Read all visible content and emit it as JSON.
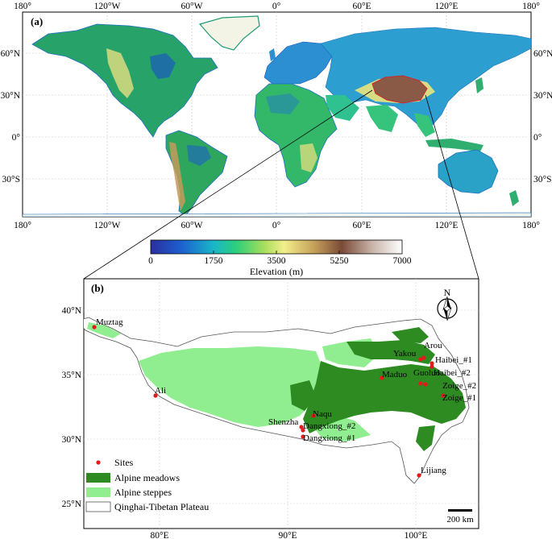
{
  "panel_a": {
    "label": "(a)",
    "lon_ticks": [
      "180°",
      "120°W",
      "60°W",
      "0°",
      "60°E",
      "120°E",
      "180°"
    ],
    "lat_ticks": [
      "60°N",
      "30°N",
      "0°",
      "30°S"
    ]
  },
  "colorbar": {
    "title": "Elevation (m)",
    "ticks": [
      "0",
      "1750",
      "3500",
      "5250",
      "7000"
    ],
    "colors": [
      "#2b2f9e",
      "#1c7ad8",
      "#19c27e",
      "#a6dd5c",
      "#f3ef8a",
      "#b08a4a",
      "#7a4a37",
      "#c8b3a8",
      "#ffffff"
    ]
  },
  "panel_b": {
    "label": "(b)",
    "lat_ticks": [
      "40°N",
      "35°N",
      "30°N",
      "25°N"
    ],
    "lon_ticks": [
      "80°E",
      "90°E",
      "100°E"
    ],
    "north_label": "N",
    "scale_label": "200 km",
    "sites": [
      {
        "name": "Muztag"
      },
      {
        "name": "Ali"
      },
      {
        "name": "Shenzha"
      },
      {
        "name": "Naqu"
      },
      {
        "name": "Dangxiong_#2"
      },
      {
        "name": "Dangxiong_#1"
      },
      {
        "name": "Maduo"
      },
      {
        "name": "Yakou"
      },
      {
        "name": "Arou"
      },
      {
        "name": "Haibei_#1"
      },
      {
        "name": "Haibei_#2"
      },
      {
        "name": "Guoluo"
      },
      {
        "name": "Zoige_#2"
      },
      {
        "name": "Zoige_#1"
      },
      {
        "name": "Lijiang"
      }
    ],
    "legend": [
      {
        "label": "Sites",
        "color": "#e31a1c"
      },
      {
        "label": "Alpine meadows",
        "color": "#2e8b22"
      },
      {
        "label": "Alpine steppes",
        "color": "#90ee90"
      },
      {
        "label": "Qinghai-Tibetan Plateau",
        "color": "#ffffff"
      }
    ]
  }
}
